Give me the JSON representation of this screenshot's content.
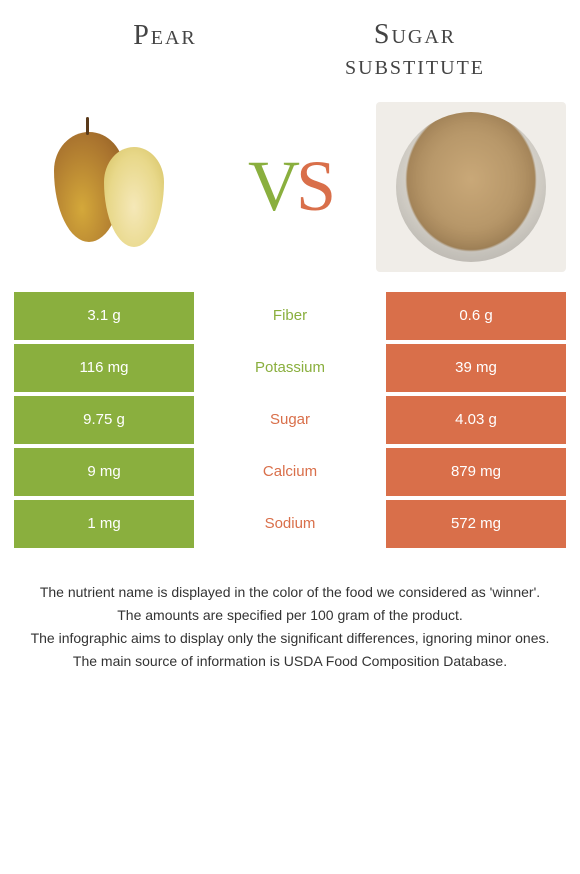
{
  "colors": {
    "left": "#8aaf3e",
    "right": "#d96f4a",
    "text": "#333333"
  },
  "header": {
    "left_title": "Pear",
    "right_title_line1": "Sugar",
    "right_title_line2": "substitute",
    "vs_v": "V",
    "vs_s": "S"
  },
  "rows": [
    {
      "left": "3.1 g",
      "label": "Fiber",
      "right": "0.6 g",
      "winner": "left"
    },
    {
      "left": "116 mg",
      "label": "Potassium",
      "right": "39 mg",
      "winner": "left"
    },
    {
      "left": "9.75 g",
      "label": "Sugar",
      "right": "4.03 g",
      "winner": "right"
    },
    {
      "left": "9 mg",
      "label": "Calcium",
      "right": "879 mg",
      "winner": "right"
    },
    {
      "left": "1 mg",
      "label": "Sodium",
      "right": "572 mg",
      "winner": "right"
    }
  ],
  "footnotes": [
    "The nutrient name is displayed in the color of the food we considered as 'winner'.",
    "The amounts are specified per 100 gram of the product.",
    "The infographic aims to display only the significant differences, ignoring minor ones.",
    "The main source of information is USDA Food Composition Database."
  ]
}
